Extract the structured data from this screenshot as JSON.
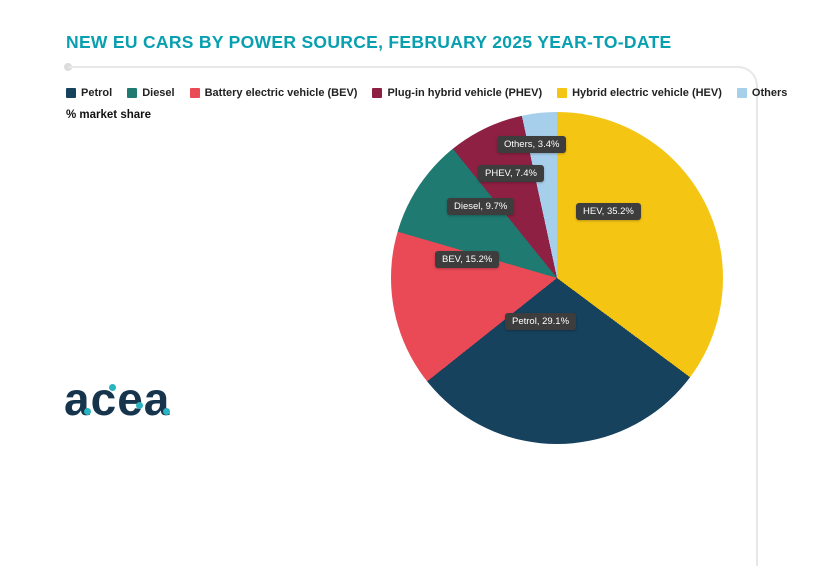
{
  "title": "NEW EU CARS BY POWER SOURCE, FEBRUARY 2025 YEAR-TO-DATE",
  "subtitle": "% market share",
  "logo_text": "acea",
  "logo_letters": [
    "a",
    "c",
    "e",
    "a"
  ],
  "colors": {
    "title": "#08a0b0",
    "label_background": "#3d3d3d",
    "label_text": "#ffffff"
  },
  "legend": [
    {
      "label": "Petrol",
      "color": "#16425e"
    },
    {
      "label": "Diesel",
      "color": "#1f7a71"
    },
    {
      "label": "Battery electric vehicle (BEV)",
      "color": "#ea4956"
    },
    {
      "label": "Plug-in hybrid vehicle (PHEV)",
      "color": "#8e2043"
    },
    {
      "label": "Hybrid electric vehicle (HEV)",
      "color": "#f5c513"
    },
    {
      "label": "Others",
      "color": "#a6cfeb"
    }
  ],
  "chart_data": {
    "type": "pie",
    "title": "NEW EU CARS BY POWER SOURCE, FEBRUARY 2025 YEAR-TO-DATE",
    "unit": "% market share",
    "categories": [
      "Petrol",
      "Diesel",
      "Battery electric vehicle (BEV)",
      "Plug-in hybrid vehicle (PHEV)",
      "Hybrid electric vehicle (HEV)",
      "Others"
    ],
    "values": [
      29.1,
      9.7,
      15.2,
      7.4,
      35.2,
      3.4
    ],
    "slice_labels": [
      "Petrol, 29.1%",
      "Diesel, 9.7%",
      "BEV, 15.2%",
      "PHEV, 7.4%",
      "HEV, 35.2%",
      "Others, 3.4%"
    ],
    "legend_position": "top",
    "clockwise_from_top_order": [
      "Hybrid electric vehicle (HEV)",
      "Petrol",
      "Battery electric vehicle (BEV)",
      "Diesel",
      "Plug-in hybrid vehicle (PHEV)",
      "Others"
    ]
  }
}
